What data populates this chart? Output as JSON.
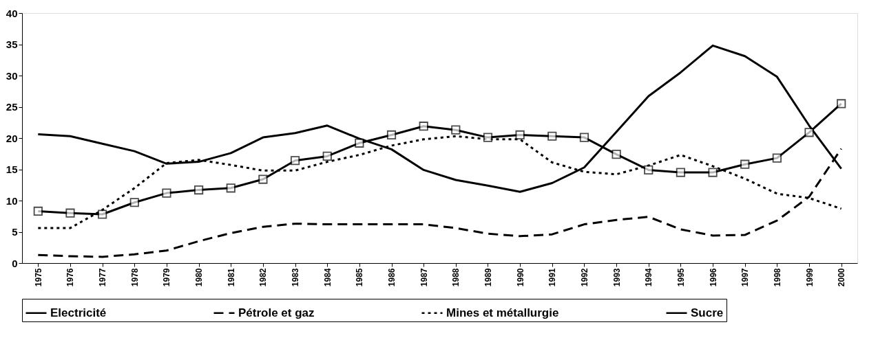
{
  "chart_data": {
    "type": "line",
    "categories": [
      "1975",
      "1976",
      "1977",
      "1978",
      "1979",
      "1980",
      "1981",
      "1982",
      "1983",
      "1984",
      "1985",
      "1986",
      "1987",
      "1988",
      "1989",
      "1990",
      "1991",
      "1992",
      "1993",
      "1994",
      "1995",
      "1996",
      "1997",
      "1998",
      "1999",
      "2000"
    ],
    "series": [
      {
        "name": "Electricité",
        "color": "#000000",
        "marker": "square",
        "line_style": "solid",
        "values": [
          8.3,
          8.0,
          7.8,
          9.7,
          11.2,
          11.7,
          12.0,
          13.4,
          16.4,
          17.1,
          19.2,
          20.5,
          21.9,
          21.3,
          20.1,
          20.5,
          20.3,
          20.1,
          17.4,
          14.9,
          14.5,
          14.5,
          15.8,
          16.8,
          20.9,
          25.5
        ]
      },
      {
        "name": "Pétrole et gaz",
        "color": "#000000",
        "line_style": "dashed",
        "values": [
          1.3,
          1.1,
          1.0,
          1.4,
          2.0,
          3.5,
          4.8,
          5.8,
          6.3,
          6.2,
          6.2,
          6.2,
          6.2,
          5.6,
          4.7,
          4.3,
          4.6,
          6.2,
          6.9,
          7.4,
          5.4,
          4.4,
          4.5,
          6.8,
          10.6,
          18.3
        ]
      },
      {
        "name": "Mines et métallurgie",
        "color": "#000000",
        "line_style": "dotted",
        "values": [
          5.6,
          5.6,
          8.5,
          12.0,
          16.0,
          16.5,
          15.7,
          14.8,
          14.8,
          16.2,
          17.3,
          18.8,
          19.8,
          20.3,
          19.8,
          19.8,
          16.1,
          14.6,
          14.2,
          15.6,
          17.3,
          15.5,
          13.5,
          11.1,
          10.4,
          8.7
        ]
      },
      {
        "name": "Sucre",
        "color": "#000000",
        "line_style": "solid",
        "values": [
          20.6,
          20.3,
          19.1,
          17.9,
          15.9,
          16.2,
          17.6,
          20.1,
          20.8,
          22.0,
          19.9,
          18.2,
          14.9,
          13.3,
          12.4,
          11.4,
          12.8,
          15.3,
          21.0,
          26.7,
          30.5,
          34.8,
          33.1,
          29.8,
          22.0,
          15.1
        ]
      }
    ],
    "ylim": [
      0,
      40
    ],
    "yticks": [
      0,
      5,
      10,
      15,
      20,
      25,
      30,
      35,
      40
    ],
    "grid": false,
    "legend": "bottom"
  }
}
